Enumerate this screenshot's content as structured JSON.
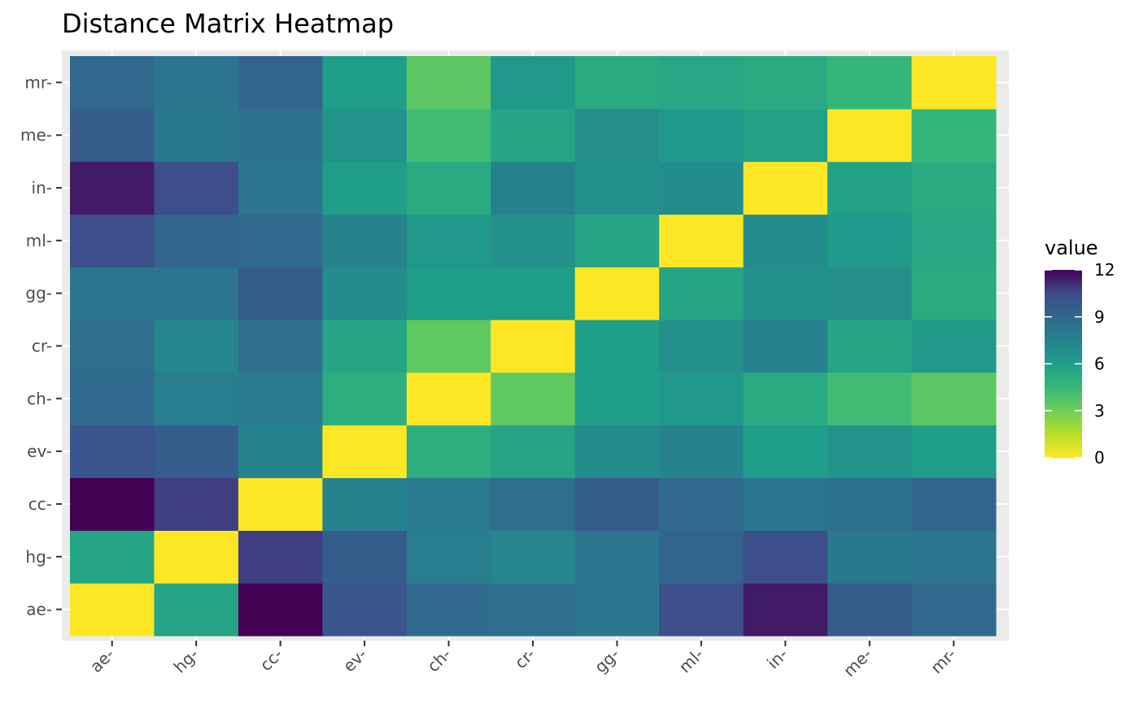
{
  "chart_data": {
    "type": "heatmap",
    "title": "Distance Matrix Heatmap",
    "xlabel": "",
    "ylabel": "",
    "x_categories": [
      "ae-",
      "hg-",
      "cc-",
      "ev-",
      "ch-",
      "cr-",
      "gg-",
      "ml-",
      "in-",
      "me-",
      "mr-"
    ],
    "y_categories": [
      "ae-",
      "hg-",
      "cc-",
      "ev-",
      "ch-",
      "cr-",
      "gg-",
      "ml-",
      "in-",
      "me-",
      "mr-"
    ],
    "values": [
      [
        0.0,
        5.6,
        12.0,
        10.0,
        8.9,
        8.6,
        8.2,
        10.3,
        11.5,
        9.6,
        9.0
      ],
      [
        5.6,
        0.0,
        10.8,
        9.6,
        7.8,
        7.3,
        8.3,
        9.2,
        10.3,
        8.1,
        8.2
      ],
      [
        12.0,
        10.8,
        0.0,
        7.6,
        8.0,
        8.6,
        9.6,
        8.9,
        8.3,
        8.5,
        9.2
      ],
      [
        10.0,
        9.6,
        7.6,
        0.0,
        5.1,
        5.6,
        7.0,
        7.5,
        6.0,
        6.6,
        6.0
      ],
      [
        8.9,
        7.8,
        8.0,
        5.1,
        0.0,
        3.4,
        6.0,
        6.3,
        5.3,
        4.3,
        3.5
      ],
      [
        8.6,
        7.3,
        8.6,
        5.6,
        3.4,
        0.0,
        6.0,
        6.8,
        7.6,
        5.6,
        6.3
      ],
      [
        8.2,
        8.3,
        9.6,
        7.0,
        6.0,
        6.0,
        0.0,
        5.6,
        6.7,
        6.9,
        5.3
      ],
      [
        10.3,
        9.2,
        8.9,
        7.5,
        6.3,
        6.8,
        5.6,
        0.0,
        7.0,
        6.2,
        5.5
      ],
      [
        11.5,
        10.3,
        8.3,
        6.0,
        5.3,
        7.6,
        6.7,
        7.0,
        0.0,
        5.8,
        5.3
      ],
      [
        9.6,
        8.1,
        8.5,
        6.6,
        4.3,
        5.6,
        6.9,
        6.2,
        5.8,
        0.0,
        4.6
      ],
      [
        9.0,
        8.2,
        9.2,
        6.0,
        3.5,
        6.3,
        5.3,
        5.5,
        5.3,
        4.6,
        0.0
      ]
    ],
    "colorscale": "viridis (reversed)",
    "vmin": 0,
    "vmax": 12,
    "legend": {
      "title": "value",
      "ticks": [
        0,
        3,
        6,
        9,
        12
      ],
      "position": "right"
    },
    "grid": true,
    "panel_background": "#ebebeb"
  }
}
